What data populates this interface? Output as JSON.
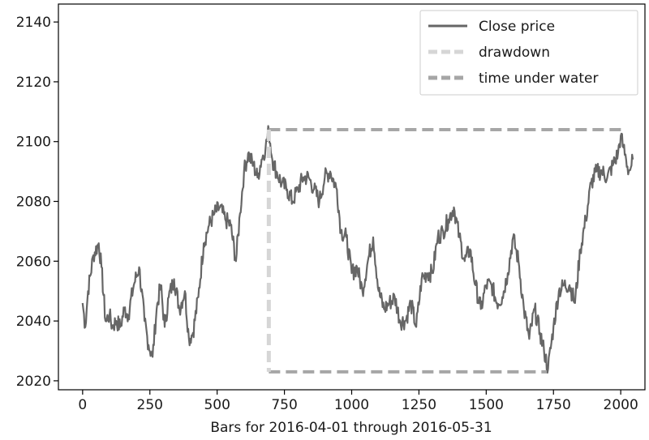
{
  "chart_data": {
    "type": "line",
    "title": "",
    "xlabel": "Bars for 2016-04-01 through 2016-05-31",
    "ylabel": "",
    "xlim": [
      -90,
      2090
    ],
    "ylim": [
      2017,
      2146
    ],
    "x_ticks": [
      0,
      250,
      500,
      750,
      1000,
      1250,
      1500,
      1750,
      2000
    ],
    "x_tick_labels": [
      "0",
      "250",
      "500",
      "750",
      "1000",
      "1250",
      "1500",
      "1750",
      "2000"
    ],
    "y_ticks": [
      2020,
      2040,
      2060,
      2080,
      2100,
      2120,
      2140
    ],
    "y_tick_labels": [
      "2020",
      "2040",
      "2060",
      "2080",
      "2100",
      "2120",
      "2140"
    ],
    "grid": false,
    "legend_position": "top-right",
    "series": [
      {
        "name": "Close price",
        "style": "solid",
        "color": "#666666",
        "x": [
          0,
          10,
          20,
          40,
          60,
          70,
          85,
          100,
          110,
          125,
          140,
          155,
          170,
          190,
          210,
          230,
          245,
          260,
          275,
          290,
          305,
          320,
          340,
          360,
          380,
          395,
          410,
          430,
          450,
          470,
          490,
          510,
          530,
          550,
          570,
          585,
          600,
          615,
          635,
          650,
          665,
          680,
          692,
          705,
          720,
          740,
          760,
          780,
          800,
          820,
          840,
          860,
          880,
          900,
          920,
          945,
          960,
          980,
          1000,
          1020,
          1040,
          1060,
          1080,
          1100,
          1120,
          1140,
          1160,
          1180,
          1200,
          1220,
          1240,
          1260,
          1280,
          1300,
          1320,
          1340,
          1360,
          1380,
          1400,
          1420,
          1440,
          1460,
          1480,
          1500,
          1520,
          1540,
          1560,
          1580,
          1600,
          1620,
          1640,
          1660,
          1680,
          1700,
          1715,
          1730,
          1750,
          1770,
          1790,
          1810,
          1830,
          1850,
          1870,
          1890,
          1910,
          1930,
          1950,
          1970,
          1990,
          2000,
          2010,
          2020,
          2030,
          2040,
          2045
        ],
        "y": [
          2046,
          2038,
          2050,
          2062,
          2066,
          2058,
          2040,
          2042,
          2038,
          2040,
          2038,
          2044,
          2042,
          2052,
          2058,
          2040,
          2032,
          2028,
          2044,
          2052,
          2038,
          2048,
          2054,
          2044,
          2050,
          2034,
          2036,
          2048,
          2066,
          2072,
          2076,
          2078,
          2074,
          2072,
          2060,
          2076,
          2090,
          2096,
          2092,
          2088,
          2094,
          2098,
          2104,
          2094,
          2090,
          2086,
          2084,
          2080,
          2084,
          2088,
          2088,
          2084,
          2080,
          2088,
          2090,
          2084,
          2070,
          2068,
          2056,
          2058,
          2050,
          2060,
          2068,
          2050,
          2044,
          2046,
          2048,
          2040,
          2040,
          2046,
          2038,
          2054,
          2056,
          2056,
          2068,
          2070,
          2074,
          2078,
          2068,
          2060,
          2064,
          2052,
          2044,
          2052,
          2052,
          2046,
          2048,
          2056,
          2068,
          2060,
          2044,
          2034,
          2044,
          2036,
          2030,
          2024,
          2038,
          2050,
          2052,
          2052,
          2046,
          2064,
          2074,
          2086,
          2090,
          2090,
          2088,
          2092,
          2096,
          2102,
          2098,
          2094,
          2090,
          2092,
          2094
        ]
      },
      {
        "name": "drawdown",
        "style": "dashed",
        "color": "#d6d6d6",
        "x": [
          692,
          692
        ],
        "y": [
          2104,
          2023
        ]
      },
      {
        "name": "time under water",
        "style": "dashed",
        "color": "#a6a6a6",
        "x": [
          692,
          2010,
          692,
          1725
        ],
        "y": [
          2104,
          2104,
          2023,
          2023
        ]
      }
    ]
  }
}
